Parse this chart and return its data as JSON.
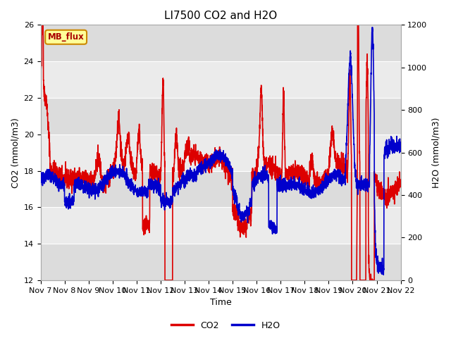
{
  "title": "LI7500 CO2 and H2O",
  "xlabel": "Time",
  "ylabel_left": "CO2 (mmol/m3)",
  "ylabel_right": "H2O (mmol/m3)",
  "ylim_left": [
    12,
    26
  ],
  "ylim_right": [
    0,
    1200
  ],
  "yticks_left": [
    12,
    14,
    16,
    18,
    20,
    22,
    24,
    26
  ],
  "yticks_right": [
    0,
    200,
    400,
    600,
    800,
    1000,
    1200
  ],
  "xtick_labels": [
    "Nov 7",
    "Nov 8",
    "Nov 9",
    "Nov 10",
    "Nov 11",
    "Nov 12",
    "Nov 13",
    "Nov 14",
    "Nov 15",
    "Nov 16",
    "Nov 17",
    "Nov 18",
    "Nov 19",
    "Nov 20",
    "Nov 21",
    "Nov 22"
  ],
  "co2_color": "#dd0000",
  "h2o_color": "#0000cc",
  "background_color": "#ffffff",
  "plot_bg_color": "#ffffff",
  "band_color_dark": "#dcdcdc",
  "band_color_light": "#ebebeb",
  "annotation_text": "MB_flux",
  "annotation_bg": "#ffff99",
  "annotation_border": "#cc8800",
  "title_fontsize": 11,
  "axis_label_fontsize": 9,
  "tick_fontsize": 8,
  "legend_fontsize": 9,
  "line_width": 1.2
}
